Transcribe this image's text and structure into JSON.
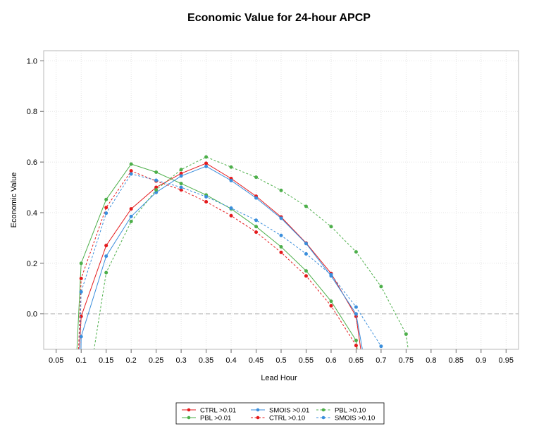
{
  "chart_data": {
    "type": "line",
    "title": "Economic Value for 24-hour APCP",
    "xlabel": "Lead Hour",
    "ylabel": "Economic Value",
    "xlim": [
      0.025,
      0.975
    ],
    "ylim": [
      -0.14,
      1.04
    ],
    "x_ticks": [
      "0.05",
      "0.1",
      "0.15",
      "0.2",
      "0.25",
      "0.3",
      "0.35",
      "0.4",
      "0.45",
      "0.5",
      "0.55",
      "0.6",
      "0.65",
      "0.7",
      "0.75",
      "0.8",
      "0.85",
      "0.9",
      "0.95"
    ],
    "y_ticks": [
      "0.0",
      "0.2",
      "0.4",
      "0.6",
      "0.8",
      "1.0"
    ],
    "grid": true,
    "reference_line_y": 0,
    "legend_position": "bottom",
    "colors": {
      "red": "#e41a1c",
      "green": "#4daf4a",
      "blue": "#3a8edc"
    },
    "series": [
      {
        "name": "CTRL >0.01",
        "color": "#e41a1c",
        "dash": false,
        "x": [
          0.09,
          0.1,
          0.15,
          0.2,
          0.25,
          0.3,
          0.35,
          0.4,
          0.45,
          0.5,
          0.55,
          0.6,
          0.65,
          0.678
        ],
        "y": [
          -0.4,
          -0.01,
          0.27,
          0.415,
          0.5,
          0.555,
          0.595,
          0.535,
          0.465,
          0.383,
          0.28,
          0.16,
          -0.01,
          -0.4
        ]
      },
      {
        "name": "PBL >0.01",
        "color": "#4daf4a",
        "dash": false,
        "x": [
          0.085,
          0.1,
          0.15,
          0.2,
          0.25,
          0.3,
          0.35,
          0.4,
          0.45,
          0.5,
          0.55,
          0.6,
          0.65,
          0.67
        ],
        "y": [
          -0.4,
          0.2,
          0.452,
          0.592,
          0.56,
          0.515,
          0.47,
          0.415,
          0.345,
          0.265,
          0.17,
          0.05,
          -0.105,
          -0.4
        ]
      },
      {
        "name": "SMOIS >0.01",
        "color": "#3a8edc",
        "dash": false,
        "x": [
          0.098,
          0.1,
          0.15,
          0.2,
          0.25,
          0.3,
          0.35,
          0.4,
          0.45,
          0.5,
          0.55,
          0.6,
          0.65,
          0.686
        ],
        "y": [
          -0.4,
          -0.09,
          0.228,
          0.385,
          0.48,
          0.545,
          0.583,
          0.527,
          0.458,
          0.378,
          0.278,
          0.15,
          0.0,
          -0.4
        ]
      },
      {
        "name": "CTRL >0.10",
        "color": "#e41a1c",
        "dash": true,
        "x": [
          0.09,
          0.1,
          0.15,
          0.2,
          0.25,
          0.3,
          0.35,
          0.4,
          0.45,
          0.5,
          0.55,
          0.6,
          0.65,
          0.675
        ],
        "y": [
          -0.4,
          0.14,
          0.42,
          0.565,
          0.525,
          0.49,
          0.443,
          0.388,
          0.323,
          0.243,
          0.15,
          0.032,
          -0.125,
          -0.4
        ]
      },
      {
        "name": "PBL >0.10",
        "color": "#4daf4a",
        "dash": true,
        "x": [
          0.105,
          0.15,
          0.2,
          0.25,
          0.3,
          0.35,
          0.4,
          0.45,
          0.5,
          0.55,
          0.6,
          0.65,
          0.7,
          0.75,
          0.772
        ],
        "y": [
          -0.4,
          0.163,
          0.365,
          0.49,
          0.57,
          0.62,
          0.58,
          0.54,
          0.488,
          0.425,
          0.345,
          0.245,
          0.108,
          -0.08,
          -0.4
        ]
      },
      {
        "name": "SMOIS >0.10",
        "color": "#3a8edc",
        "dash": true,
        "x": [
          0.093,
          0.1,
          0.15,
          0.2,
          0.25,
          0.3,
          0.35,
          0.4,
          0.45,
          0.5,
          0.55,
          0.6,
          0.65,
          0.7,
          0.722
        ],
        "y": [
          -0.4,
          0.087,
          0.398,
          0.553,
          0.528,
          0.5,
          0.463,
          0.418,
          0.37,
          0.31,
          0.237,
          0.155,
          0.027,
          -0.128,
          -0.4
        ]
      }
    ]
  }
}
